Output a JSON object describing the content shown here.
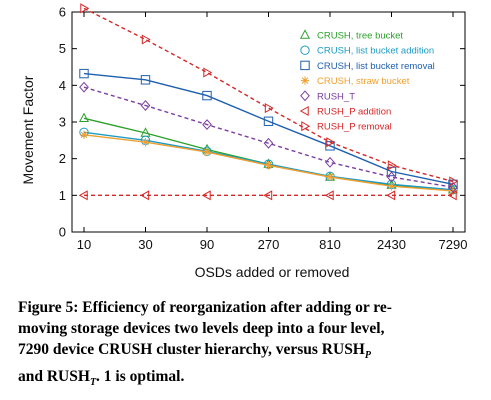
{
  "chart_data": {
    "type": "line",
    "categories": [
      "10",
      "30",
      "90",
      "270",
      "810",
      "2430",
      "7290"
    ],
    "xlabel": "OSDs added or removed",
    "ylabel": "Movement Factor",
    "ylim": [
      0,
      6
    ],
    "yticks": [
      "0",
      "1",
      "2",
      "3",
      "4",
      "5",
      "6"
    ],
    "legend_position": "top-right",
    "series": [
      {
        "name": "CRUSH, tree bucket",
        "color": "#2ca02c",
        "marker": "triangle-up",
        "dash": false,
        "values": [
          3.1,
          2.7,
          2.25,
          1.85,
          1.5,
          1.28,
          1.15
        ]
      },
      {
        "name": "CRUSH, list bucket addition",
        "color": "#1f9bc4",
        "marker": "circle",
        "dash": false,
        "values": [
          2.72,
          2.5,
          2.2,
          1.85,
          1.52,
          1.3,
          1.15
        ]
      },
      {
        "name": "CRUSH, list bucket removal",
        "color": "#1f5fae",
        "marker": "square",
        "dash": false,
        "values": [
          4.32,
          4.15,
          3.72,
          3.02,
          2.35,
          1.65,
          1.3
        ]
      },
      {
        "name": "CRUSH, straw bucket",
        "color": "#f0a030",
        "marker": "star",
        "dash": false,
        "values": [
          2.65,
          2.45,
          2.18,
          1.82,
          1.5,
          1.25,
          1.12
        ]
      },
      {
        "name": "RUSH_T",
        "color": "#7b3f9e",
        "marker": "diamond",
        "dash": true,
        "values": [
          3.95,
          3.45,
          2.93,
          2.42,
          1.9,
          1.5,
          1.22
        ]
      },
      {
        "name": "RUSH_P addition",
        "color": "#d62728",
        "marker": "triangle-left",
        "dash": true,
        "values": [
          1.0,
          1.0,
          1.0,
          1.0,
          1.0,
          1.0,
          1.0
        ]
      },
      {
        "name": "RUSH_P removal",
        "color": "#d62728",
        "marker": "triangle-right",
        "dash": true,
        "values": [
          6.1,
          5.25,
          4.35,
          3.38,
          2.45,
          1.82,
          1.38
        ]
      }
    ]
  },
  "caption": {
    "part1": "Figure 5: Efficiency of reorganization after adding or re-",
    "part2": "moving storage devices two levels deep into a four level,",
    "part3": "7290 device CRUSH cluster hierarchy, versus RUSH",
    "sub_p": "P",
    "part4": "and RUSH",
    "sub_t": "T",
    "part5": ". 1 is optimal."
  }
}
